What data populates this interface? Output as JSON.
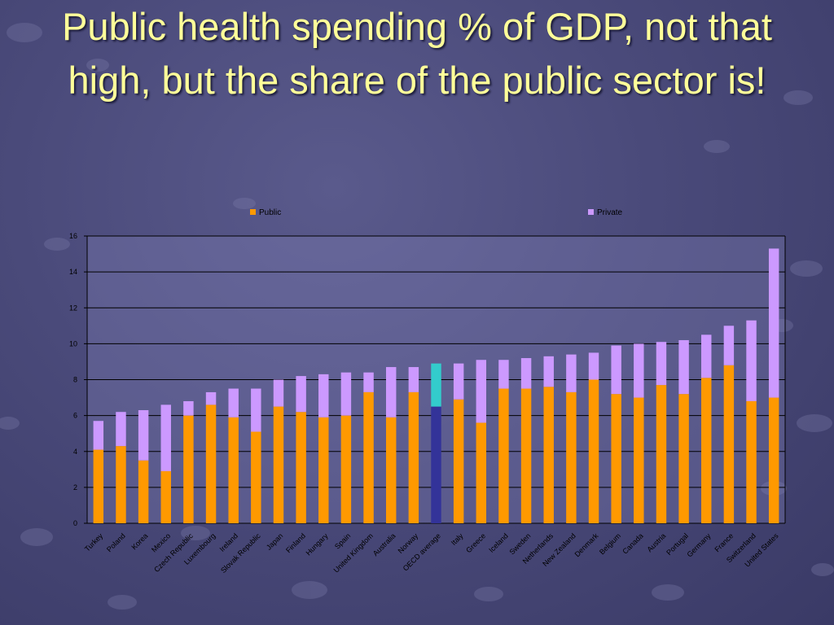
{
  "slide": {
    "title": "Public health spending % of GDP, not that high, but the share of the public sector is!"
  },
  "chart_data": {
    "type": "bar",
    "stacked": true,
    "legend_placement": "top",
    "grid": true,
    "ylim": [
      0,
      16
    ],
    "yticks": [
      0,
      2,
      4,
      6,
      8,
      10,
      12,
      14,
      16
    ],
    "categories": [
      "Turkey",
      "Poland",
      "Korea",
      "Mexico",
      "Czech Republic",
      "Luxembourg",
      "Ireland",
      "Slovak Republic",
      "Japan",
      "Finland",
      "Hungary",
      "Spain",
      "United Kingdom",
      "Australia",
      "Norway",
      "OECD average",
      "Italy",
      "Greece",
      "Iceland",
      "Sweden",
      "Netherlands",
      "New Zealand",
      "Denmark",
      "Belgium",
      "Canada",
      "Austria",
      "Portugal",
      "Germany",
      "France",
      "Switzerland",
      "United States"
    ],
    "highlight_category": "OECD average",
    "series": [
      {
        "name": "Public",
        "color": "#ff9900",
        "highlight_color": "#333399",
        "values": [
          4.1,
          4.3,
          3.5,
          2.9,
          6.0,
          6.6,
          5.9,
          5.1,
          6.5,
          6.2,
          5.9,
          6.0,
          7.3,
          5.9,
          7.3,
          6.5,
          6.9,
          5.6,
          7.5,
          7.5,
          7.6,
          7.3,
          8.0,
          7.2,
          7.0,
          7.7,
          7.2,
          8.1,
          8.8,
          6.8,
          7.0
        ]
      },
      {
        "name": "Private",
        "color": "#cc99ff",
        "highlight_color": "#33cccc",
        "values": [
          1.6,
          1.9,
          2.8,
          3.7,
          0.8,
          0.7,
          1.6,
          2.4,
          1.5,
          2.0,
          2.4,
          2.4,
          1.1,
          2.8,
          1.4,
          2.4,
          2.0,
          3.5,
          1.6,
          1.7,
          1.7,
          2.1,
          1.5,
          2.7,
          3.0,
          2.4,
          3.0,
          2.4,
          2.2,
          4.5,
          8.3
        ]
      }
    ]
  }
}
